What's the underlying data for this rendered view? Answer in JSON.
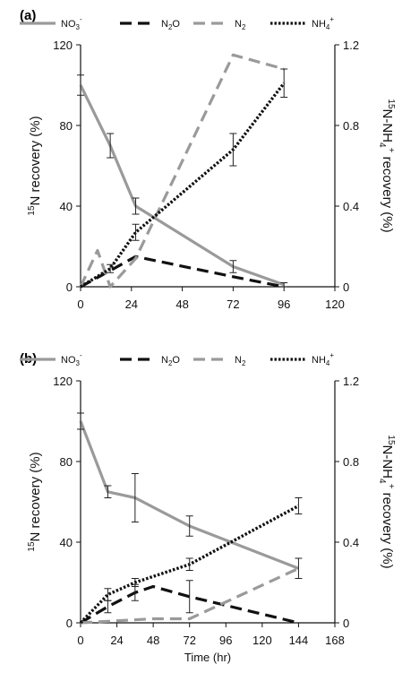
{
  "chart_data": [
    {
      "type": "line",
      "panel_label": "(a)",
      "xlabel": "",
      "ylabel_left_sup": "15",
      "ylabel_left": "N recovery (%)",
      "ylabel_right_sup": "15",
      "ylabel_right_n": "N-NH",
      "ylabel_right_sub": "4",
      "ylabel_right_plus": "+",
      "ylabel_right_rest": " recovery (%)",
      "x_ticks": [
        "0",
        "24",
        "48",
        "72",
        "96",
        "120"
      ],
      "y_left_ticks": [
        "0",
        "40",
        "80",
        "120"
      ],
      "y_right_ticks": [
        "0",
        "0.4",
        "0.8",
        "1.2"
      ],
      "xlim": [
        0,
        120
      ],
      "ylim_left": [
        0,
        120
      ],
      "ylim_right": [
        0,
        1.2
      ],
      "legend": [
        {
          "main": "NO",
          "sub": "3",
          "sup": "-"
        },
        {
          "main": "N",
          "sub": "2",
          "suffix": "O"
        },
        {
          "main": "N",
          "sub": "2"
        },
        {
          "main": "NH",
          "sub": "4",
          "sup": "+"
        }
      ],
      "series": [
        {
          "key": "NO3",
          "axis": "left",
          "color": "#9a9a9a",
          "style": "solid",
          "x": [
            0,
            14,
            26,
            72,
            96
          ],
          "y": [
            100,
            70,
            40,
            10,
            1
          ],
          "err": [
            5,
            6,
            4,
            3,
            1
          ]
        },
        {
          "key": "N2O",
          "axis": "left",
          "color": "#111111",
          "style": "dash",
          "x": [
            0,
            14,
            26,
            72,
            96
          ],
          "y": [
            0,
            8,
            15,
            5,
            0
          ]
        },
        {
          "key": "N2",
          "axis": "left",
          "color": "#9a9a9a",
          "style": "dash",
          "x": [
            0,
            8,
            14,
            26,
            72,
            96
          ],
          "y": [
            0,
            18,
            0,
            14,
            115,
            108
          ]
        },
        {
          "key": "NH4",
          "axis": "right",
          "color": "#111111",
          "style": "dot",
          "x": [
            0,
            14,
            26,
            72,
            96
          ],
          "y": [
            0,
            0.09,
            0.27,
            0.68,
            1.01
          ],
          "err": [
            0,
            0.02,
            0.04,
            0.08,
            0.07
          ]
        }
      ]
    },
    {
      "type": "line",
      "panel_label": "(b)",
      "xlabel": "Time (hr)",
      "ylabel_left_sup": "15",
      "ylabel_left": "N recovery (%)",
      "ylabel_right_sup": "15",
      "ylabel_right_n": "N-NH",
      "ylabel_right_sub": "4",
      "ylabel_right_plus": "+",
      "ylabel_right_rest": " recovery (%)",
      "x_ticks": [
        "0",
        "24",
        "48",
        "72",
        "96",
        "120",
        "144",
        "168"
      ],
      "y_left_ticks": [
        "0",
        "40",
        "80",
        "120"
      ],
      "y_right_ticks": [
        "0",
        "0.4",
        "0.8",
        "1.2"
      ],
      "xlim": [
        0,
        168
      ],
      "ylim_left": [
        0,
        120
      ],
      "ylim_right": [
        0,
        1.2
      ],
      "legend": [
        {
          "main": "NO",
          "sub": "3",
          "sup": "-"
        },
        {
          "main": "N",
          "sub": "2",
          "suffix": "O"
        },
        {
          "main": "N",
          "sub": "2"
        },
        {
          "main": "NH",
          "sub": "4",
          "sup": "+"
        }
      ],
      "series": [
        {
          "key": "NO3",
          "axis": "left",
          "color": "#9a9a9a",
          "style": "solid",
          "x": [
            0,
            18,
            36,
            54,
            72,
            144
          ],
          "y": [
            100,
            65,
            62,
            55,
            48,
            27
          ],
          "err": [
            4,
            3,
            12,
            0,
            5,
            5
          ]
        },
        {
          "key": "N2O",
          "axis": "left",
          "color": "#111111",
          "style": "dash",
          "x": [
            0,
            18,
            36,
            48,
            72,
            144
          ],
          "y": [
            0,
            8,
            15,
            18,
            13,
            0
          ],
          "err": [
            0,
            3,
            4,
            0,
            8,
            0
          ]
        },
        {
          "key": "N2",
          "axis": "left",
          "color": "#9a9a9a",
          "style": "dash",
          "x": [
            0,
            48,
            72,
            144
          ],
          "y": [
            0,
            2,
            2,
            27
          ]
        },
        {
          "key": "NH4",
          "axis": "right",
          "color": "#111111",
          "style": "dot",
          "x": [
            0,
            18,
            36,
            48,
            72,
            144
          ],
          "y": [
            0,
            0.14,
            0.2,
            0.23,
            0.29,
            0.58
          ],
          "err": [
            0,
            0.03,
            0.02,
            0,
            0.03,
            0.04
          ]
        }
      ]
    }
  ]
}
